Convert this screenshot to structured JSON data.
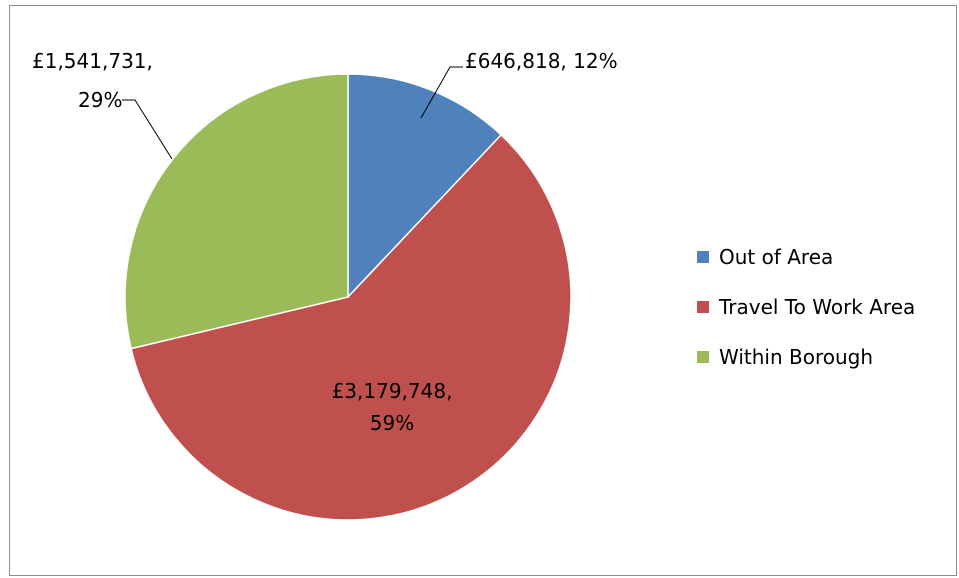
{
  "chart_data": {
    "type": "pie",
    "title": "",
    "start_angle_deg": 0,
    "direction": "clockwise",
    "legend_position": "right",
    "slices": [
      {
        "name": "Out of Area",
        "value": 646818,
        "percent": 12,
        "label": "£646,818, 12%",
        "color": "#4F81BD"
      },
      {
        "name": "Travel To Work Area",
        "value": 3179748,
        "percent": 59,
        "label_lines": [
          "£3,179,748,",
          "59%"
        ],
        "color": "#C0504D"
      },
      {
        "name": "Within Borough",
        "value": 1541731,
        "percent": 29,
        "label_lines": [
          "£1,541,731,",
          "29%"
        ],
        "color": "#9BBB59"
      }
    ]
  }
}
